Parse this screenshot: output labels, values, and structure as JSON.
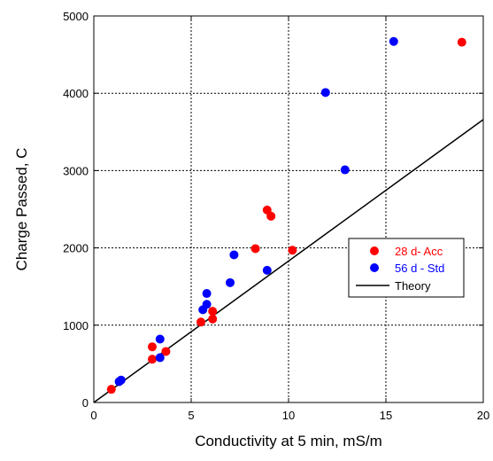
{
  "chart_data": {
    "type": "scatter",
    "title": "",
    "xlabel": "Conductivity at 5 min, mS/m",
    "ylabel": "Charge Passed, C",
    "xlim": [
      0,
      20
    ],
    "ylim": [
      0,
      5000
    ],
    "xticks": [
      "0",
      "5",
      "10",
      "15",
      "20"
    ],
    "yticks": [
      "0",
      "1000",
      "2000",
      "3000",
      "4000",
      "5000"
    ],
    "grid": true,
    "legend_position": "right",
    "series": [
      {
        "name": "28 d- Acc",
        "color": "#ff0000",
        "points": [
          [
            0.9,
            170
          ],
          [
            3.0,
            720
          ],
          [
            3.0,
            560
          ],
          [
            3.7,
            660
          ],
          [
            5.5,
            1040
          ],
          [
            6.1,
            1180
          ],
          [
            6.1,
            1080
          ],
          [
            8.3,
            1990
          ],
          [
            8.9,
            2490
          ],
          [
            9.1,
            2410
          ],
          [
            10.2,
            1970
          ],
          [
            18.9,
            4660
          ]
        ]
      },
      {
        "name": "56 d - Std",
        "color": "#0000ff",
        "points": [
          [
            1.3,
            270
          ],
          [
            1.4,
            290
          ],
          [
            3.4,
            820
          ],
          [
            3.4,
            580
          ],
          [
            5.6,
            1200
          ],
          [
            5.8,
            1270
          ],
          [
            5.8,
            1410
          ],
          [
            7.0,
            1550
          ],
          [
            7.2,
            1910
          ],
          [
            8.9,
            1710
          ],
          [
            11.9,
            4010
          ],
          [
            12.9,
            3010
          ],
          [
            15.4,
            4670
          ]
        ]
      },
      {
        "name": "Theory",
        "color": "#000000",
        "line": [
          [
            0,
            0
          ],
          [
            20,
            3660
          ]
        ]
      }
    ]
  }
}
